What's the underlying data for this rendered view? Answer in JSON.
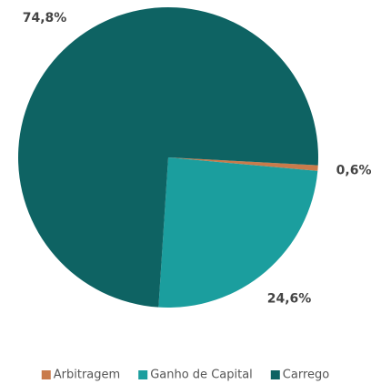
{
  "chart_data": {
    "type": "pie",
    "categories": [
      "Arbitragem",
      "Ganho de Capital",
      "Carrego"
    ],
    "values": [
      0.6,
      24.6,
      74.8
    ],
    "value_labels": [
      "0,6%",
      "24,6%",
      "74,8%"
    ],
    "colors": [
      "#c97b4b",
      "#1b9e9e",
      "#0e6363"
    ],
    "legend": "bottom"
  }
}
